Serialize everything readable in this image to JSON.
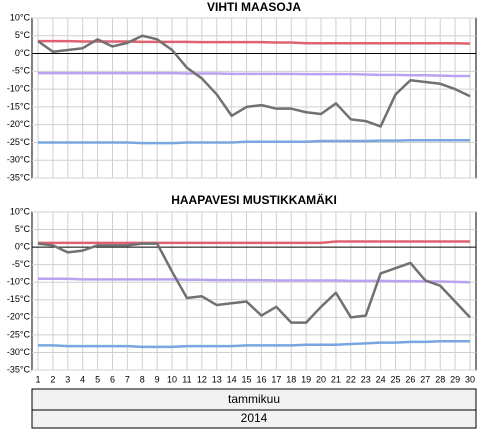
{
  "chart_data": [
    {
      "type": "line",
      "title": "VIHTI MAASOJA",
      "ylim": [
        -35,
        10
      ],
      "yticks": [
        {
          "value": 10,
          "label": "10°C"
        },
        {
          "value": 5,
          "label": "5°C"
        },
        {
          "value": 0,
          "label": "0°C"
        },
        {
          "value": -5,
          "label": "-5°C"
        },
        {
          "value": -10,
          "label": "-10°C"
        },
        {
          "value": -15,
          "label": "-15°C"
        },
        {
          "value": -20,
          "label": "-20°C"
        },
        {
          "value": -25,
          "label": "-25°C"
        },
        {
          "value": -30,
          "label": "-30°C"
        },
        {
          "value": -35,
          "label": "-35°C"
        }
      ],
      "grid": true,
      "series": [
        {
          "color": "#e06272",
          "values": [
            3.5,
            3.5,
            3.5,
            3.4,
            3.4,
            3.4,
            3.4,
            3.3,
            3.3,
            3.3,
            3.3,
            3.2,
            3.2,
            3.2,
            3.2,
            3.2,
            3.1,
            3.1,
            2.9,
            2.9,
            2.9,
            2.9,
            2.9,
            2.9,
            2.9,
            2.9,
            2.9,
            2.9,
            2.9,
            2.8
          ]
        },
        {
          "color": "#b9a3f0",
          "values": [
            -5.5,
            -5.5,
            -5.5,
            -5.5,
            -5.5,
            -5.5,
            -5.5,
            -5.5,
            -5.5,
            -5.5,
            -5.6,
            -5.6,
            -5.6,
            -5.7,
            -5.7,
            -5.7,
            -5.7,
            -5.7,
            -5.8,
            -5.8,
            -5.8,
            -5.8,
            -5.9,
            -6.0,
            -6.0,
            -6.1,
            -6.1,
            -6.2,
            -6.3,
            -6.3
          ]
        },
        {
          "color": "#7aa6e0",
          "values": [
            -25.0,
            -25.0,
            -25.0,
            -25.0,
            -25.0,
            -25.0,
            -25.0,
            -25.2,
            -25.2,
            -25.2,
            -25.0,
            -25.0,
            -25.0,
            -25.0,
            -24.8,
            -24.8,
            -24.8,
            -24.8,
            -24.8,
            -24.6,
            -24.6,
            -24.6,
            -24.6,
            -24.5,
            -24.5,
            -24.4,
            -24.4,
            -24.4,
            -24.4,
            -24.4
          ]
        },
        {
          "color": "#717171",
          "values": [
            3.5,
            0.5,
            1,
            1.5,
            4,
            2,
            3,
            5,
            4,
            1,
            -4,
            -7,
            -11.5,
            -17.5,
            -15,
            -14.5,
            -15.5,
            -15.5,
            -16.5,
            -17,
            -14,
            -18.5,
            -19,
            -20.5,
            -11.5,
            -7.5,
            -8,
            -8.5,
            -10,
            -12
          ]
        }
      ]
    },
    {
      "type": "line",
      "title": "HAAPAVESI MUSTIKKAMÄKI",
      "categories": [
        "1",
        "2",
        "3",
        "4",
        "5",
        "6",
        "7",
        "8",
        "9",
        "10",
        "11",
        "12",
        "13",
        "14",
        "15",
        "16",
        "17",
        "18",
        "19",
        "20",
        "21",
        "22",
        "23",
        "24",
        "25",
        "26",
        "27",
        "28",
        "29",
        "30"
      ],
      "x_label": "tammikuu",
      "x_sublabel": "2014",
      "ylim": [
        -35,
        10
      ],
      "yticks": [
        {
          "value": 10,
          "label": "10°C"
        },
        {
          "value": 5,
          "label": "5°C"
        },
        {
          "value": 0,
          "label": "0°C"
        },
        {
          "value": -5,
          "label": "-5°C"
        },
        {
          "value": -10,
          "label": "-10°C"
        },
        {
          "value": -15,
          "label": "-15°C"
        },
        {
          "value": -20,
          "label": "-20°C"
        },
        {
          "value": -25,
          "label": "-25°C"
        },
        {
          "value": -30,
          "label": "-30°C"
        },
        {
          "value": -35,
          "label": "-35°C"
        }
      ],
      "grid": true,
      "series": [
        {
          "color": "#e06272",
          "values": [
            1.2,
            1.2,
            1.2,
            1.2,
            1.2,
            1.2,
            1.2,
            1.2,
            1.2,
            1.2,
            1.2,
            1.2,
            1.2,
            1.2,
            1.2,
            1.2,
            1.2,
            1.2,
            1.2,
            1.2,
            1.6,
            1.6,
            1.6,
            1.6,
            1.6,
            1.6,
            1.6,
            1.6,
            1.6,
            1.6
          ]
        },
        {
          "color": "#b9a3f0",
          "values": [
            -9.0,
            -9.0,
            -9.0,
            -9.2,
            -9.2,
            -9.2,
            -9.2,
            -9.2,
            -9.2,
            -9.2,
            -9.3,
            -9.3,
            -9.4,
            -9.4,
            -9.4,
            -9.4,
            -9.5,
            -9.5,
            -9.5,
            -9.5,
            -9.5,
            -9.6,
            -9.6,
            -9.6,
            -9.7,
            -9.7,
            -9.8,
            -9.8,
            -9.9,
            -10.0
          ]
        },
        {
          "color": "#7aa6e0",
          "values": [
            -28.0,
            -28.0,
            -28.2,
            -28.2,
            -28.2,
            -28.2,
            -28.2,
            -28.4,
            -28.4,
            -28.4,
            -28.2,
            -28.2,
            -28.2,
            -28.2,
            -28.0,
            -28.0,
            -28.0,
            -28.0,
            -27.8,
            -27.8,
            -27.8,
            -27.6,
            -27.4,
            -27.2,
            -27.2,
            -27.0,
            -27.0,
            -26.8,
            -26.8,
            -26.8
          ]
        },
        {
          "color": "#717171",
          "values": [
            1,
            0.5,
            -1.5,
            -1,
            0.5,
            0.5,
            0.5,
            1,
            1,
            -7,
            -14.5,
            -14,
            -16.5,
            -16,
            -15.5,
            -19.5,
            -17,
            -21.5,
            -21.5,
            -17,
            -13,
            -20,
            -19.5,
            -7.5,
            -6,
            -4.5,
            -9.5,
            -11,
            -15.5,
            -20
          ]
        }
      ]
    }
  ]
}
